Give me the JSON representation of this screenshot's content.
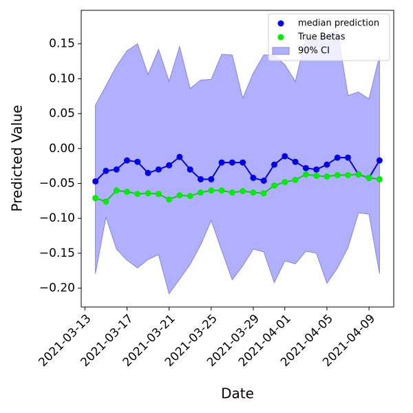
{
  "chart_data": {
    "type": "line",
    "xlabel": "Date",
    "ylabel": "Predicted Value",
    "x": [
      "2021-03-14",
      "2021-03-15",
      "2021-03-16",
      "2021-03-17",
      "2021-03-18",
      "2021-03-19",
      "2021-03-20",
      "2021-03-21",
      "2021-03-22",
      "2021-03-23",
      "2021-03-24",
      "2021-03-25",
      "2021-03-26",
      "2021-03-27",
      "2021-03-28",
      "2021-03-29",
      "2021-03-30",
      "2021-03-31",
      "2021-04-01",
      "2021-04-02",
      "2021-04-03",
      "2021-04-04",
      "2021-04-05",
      "2021-04-06",
      "2021-04-07",
      "2021-04-08",
      "2021-04-09",
      "2021-04-10"
    ],
    "series": [
      {
        "name": "median prediction",
        "color": "#0000dd",
        "marker_color": "#0000ee",
        "values": [
          -0.047,
          -0.032,
          -0.03,
          -0.017,
          -0.019,
          -0.035,
          -0.03,
          -0.024,
          -0.012,
          -0.03,
          -0.044,
          -0.044,
          -0.02,
          -0.02,
          -0.02,
          -0.042,
          -0.046,
          -0.023,
          -0.011,
          -0.019,
          -0.028,
          -0.03,
          -0.023,
          -0.013,
          -0.013,
          -0.037,
          -0.042,
          -0.017
        ]
      },
      {
        "name": "True Betas",
        "color": "#22bb22",
        "marker_color": "#00ee00",
        "values": [
          -0.071,
          -0.076,
          -0.06,
          -0.062,
          -0.065,
          -0.064,
          -0.065,
          -0.073,
          -0.067,
          -0.068,
          -0.063,
          -0.06,
          -0.06,
          -0.063,
          -0.061,
          -0.063,
          -0.064,
          -0.053,
          -0.048,
          -0.045,
          -0.037,
          -0.039,
          -0.04,
          -0.038,
          -0.038,
          -0.037,
          -0.042,
          -0.044
        ]
      }
    ],
    "band": {
      "name": "90% CI",
      "color": "#b0b0ff",
      "edge_color": "#8080ee",
      "upper": [
        0.062,
        0.09,
        0.118,
        0.14,
        0.15,
        0.106,
        0.142,
        0.096,
        0.146,
        0.086,
        0.098,
        0.099,
        0.135,
        0.134,
        0.072,
        0.108,
        0.134,
        0.134,
        0.12,
        0.096,
        0.159,
        0.154,
        0.164,
        0.169,
        0.076,
        0.081,
        0.071,
        0.133
      ],
      "lower": [
        -0.179,
        -0.098,
        -0.144,
        -0.16,
        -0.171,
        -0.159,
        -0.152,
        -0.208,
        -0.187,
        -0.166,
        -0.138,
        -0.103,
        -0.146,
        -0.188,
        -0.168,
        -0.144,
        -0.148,
        -0.192,
        -0.161,
        -0.165,
        -0.147,
        -0.15,
        -0.193,
        -0.171,
        -0.142,
        -0.092,
        -0.094,
        -0.179
      ]
    },
    "xlim": [
      "2021-03-12T15:36",
      "2021-04-11T08:24"
    ],
    "xticks": [
      "2021-03-13",
      "2021-03-17",
      "2021-03-21",
      "2021-03-25",
      "2021-03-29",
      "2021-04-01",
      "2021-04-05",
      "2021-04-09"
    ],
    "ylim": [
      -0.227,
      0.198
    ],
    "yticks": [
      {
        "value": -0.2,
        "label": "−0.20"
      },
      {
        "value": -0.15,
        "label": "−0.15"
      },
      {
        "value": -0.1,
        "label": "−0.10"
      },
      {
        "value": -0.05,
        "label": "−0.05"
      },
      {
        "value": 0,
        "label": "0.00"
      },
      0.05,
      {
        "value": 0.1,
        "label": "0.10"
      },
      0.15
    ],
    "legend": "upper right"
  }
}
